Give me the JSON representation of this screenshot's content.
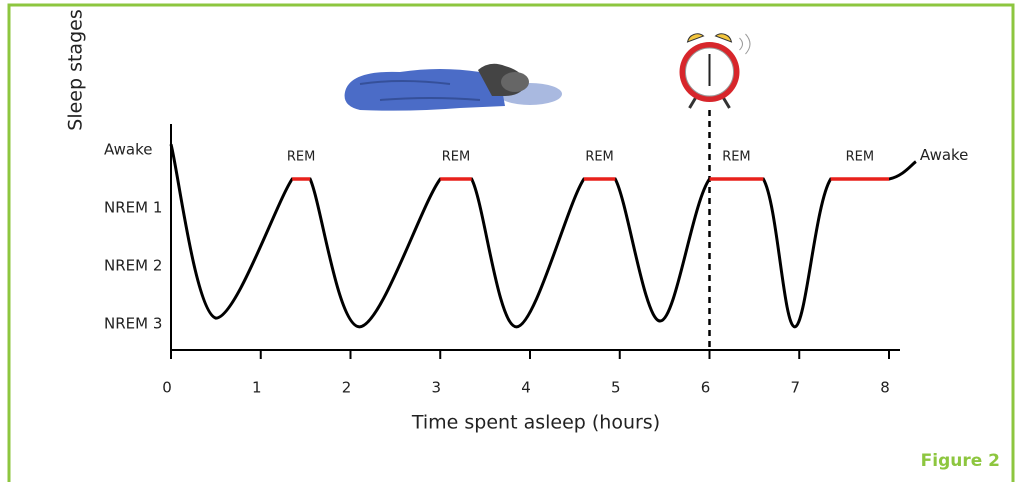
{
  "chart_data": {
    "type": "line",
    "x_label": "Time spent asleep (hours)",
    "y_label": "Sleep stages",
    "caption": "Figure 2",
    "xlim": [
      0,
      8
    ],
    "xticks": [
      0,
      1,
      2,
      3,
      4,
      5,
      6,
      7,
      8
    ],
    "ylim": [
      -0.45,
      3.45
    ],
    "yticks": [
      {
        "value": 0,
        "label": "NREM 3"
      },
      {
        "value": 1,
        "label": "NREM 2"
      },
      {
        "value": 2,
        "label": "NREM 1"
      },
      {
        "value": 3,
        "label": "Awake"
      }
    ],
    "series": [
      {
        "color": "#000000",
        "x": [
          0,
          0.5,
          1.35,
          1.55,
          2.1,
          3.0,
          3.35,
          3.85,
          4.6,
          4.95,
          5.45,
          6.0,
          6.6,
          6.95,
          7.35,
          8.0,
          8.3
        ],
        "values": [
          3.1,
          0.1,
          2.5,
          2.5,
          -0.05,
          2.5,
          2.5,
          -0.05,
          2.5,
          2.5,
          0.05,
          2.5,
          2.5,
          -0.05,
          2.5,
          2.5,
          2.8
        ]
      }
    ],
    "rem_color": "#e8211b",
    "rem_segments": [
      {
        "label": "REM",
        "x": [
          1.35,
          1.55
        ],
        "values": [
          2.5,
          2.5
        ]
      },
      {
        "label": "REM",
        "x": [
          3.0,
          3.35
        ],
        "values": [
          2.5,
          2.5
        ]
      },
      {
        "label": "REM",
        "x": [
          4.6,
          4.95
        ],
        "values": [
          2.5,
          2.5
        ]
      },
      {
        "label": "REM",
        "x": [
          6.0,
          6.6
        ],
        "values": [
          2.5,
          2.5
        ]
      },
      {
        "label": "REM",
        "x": [
          7.35,
          8.0
        ],
        "values": [
          2.5,
          2.5
        ]
      }
    ],
    "end_label": "Awake",
    "alarm_x": 6
  }
}
